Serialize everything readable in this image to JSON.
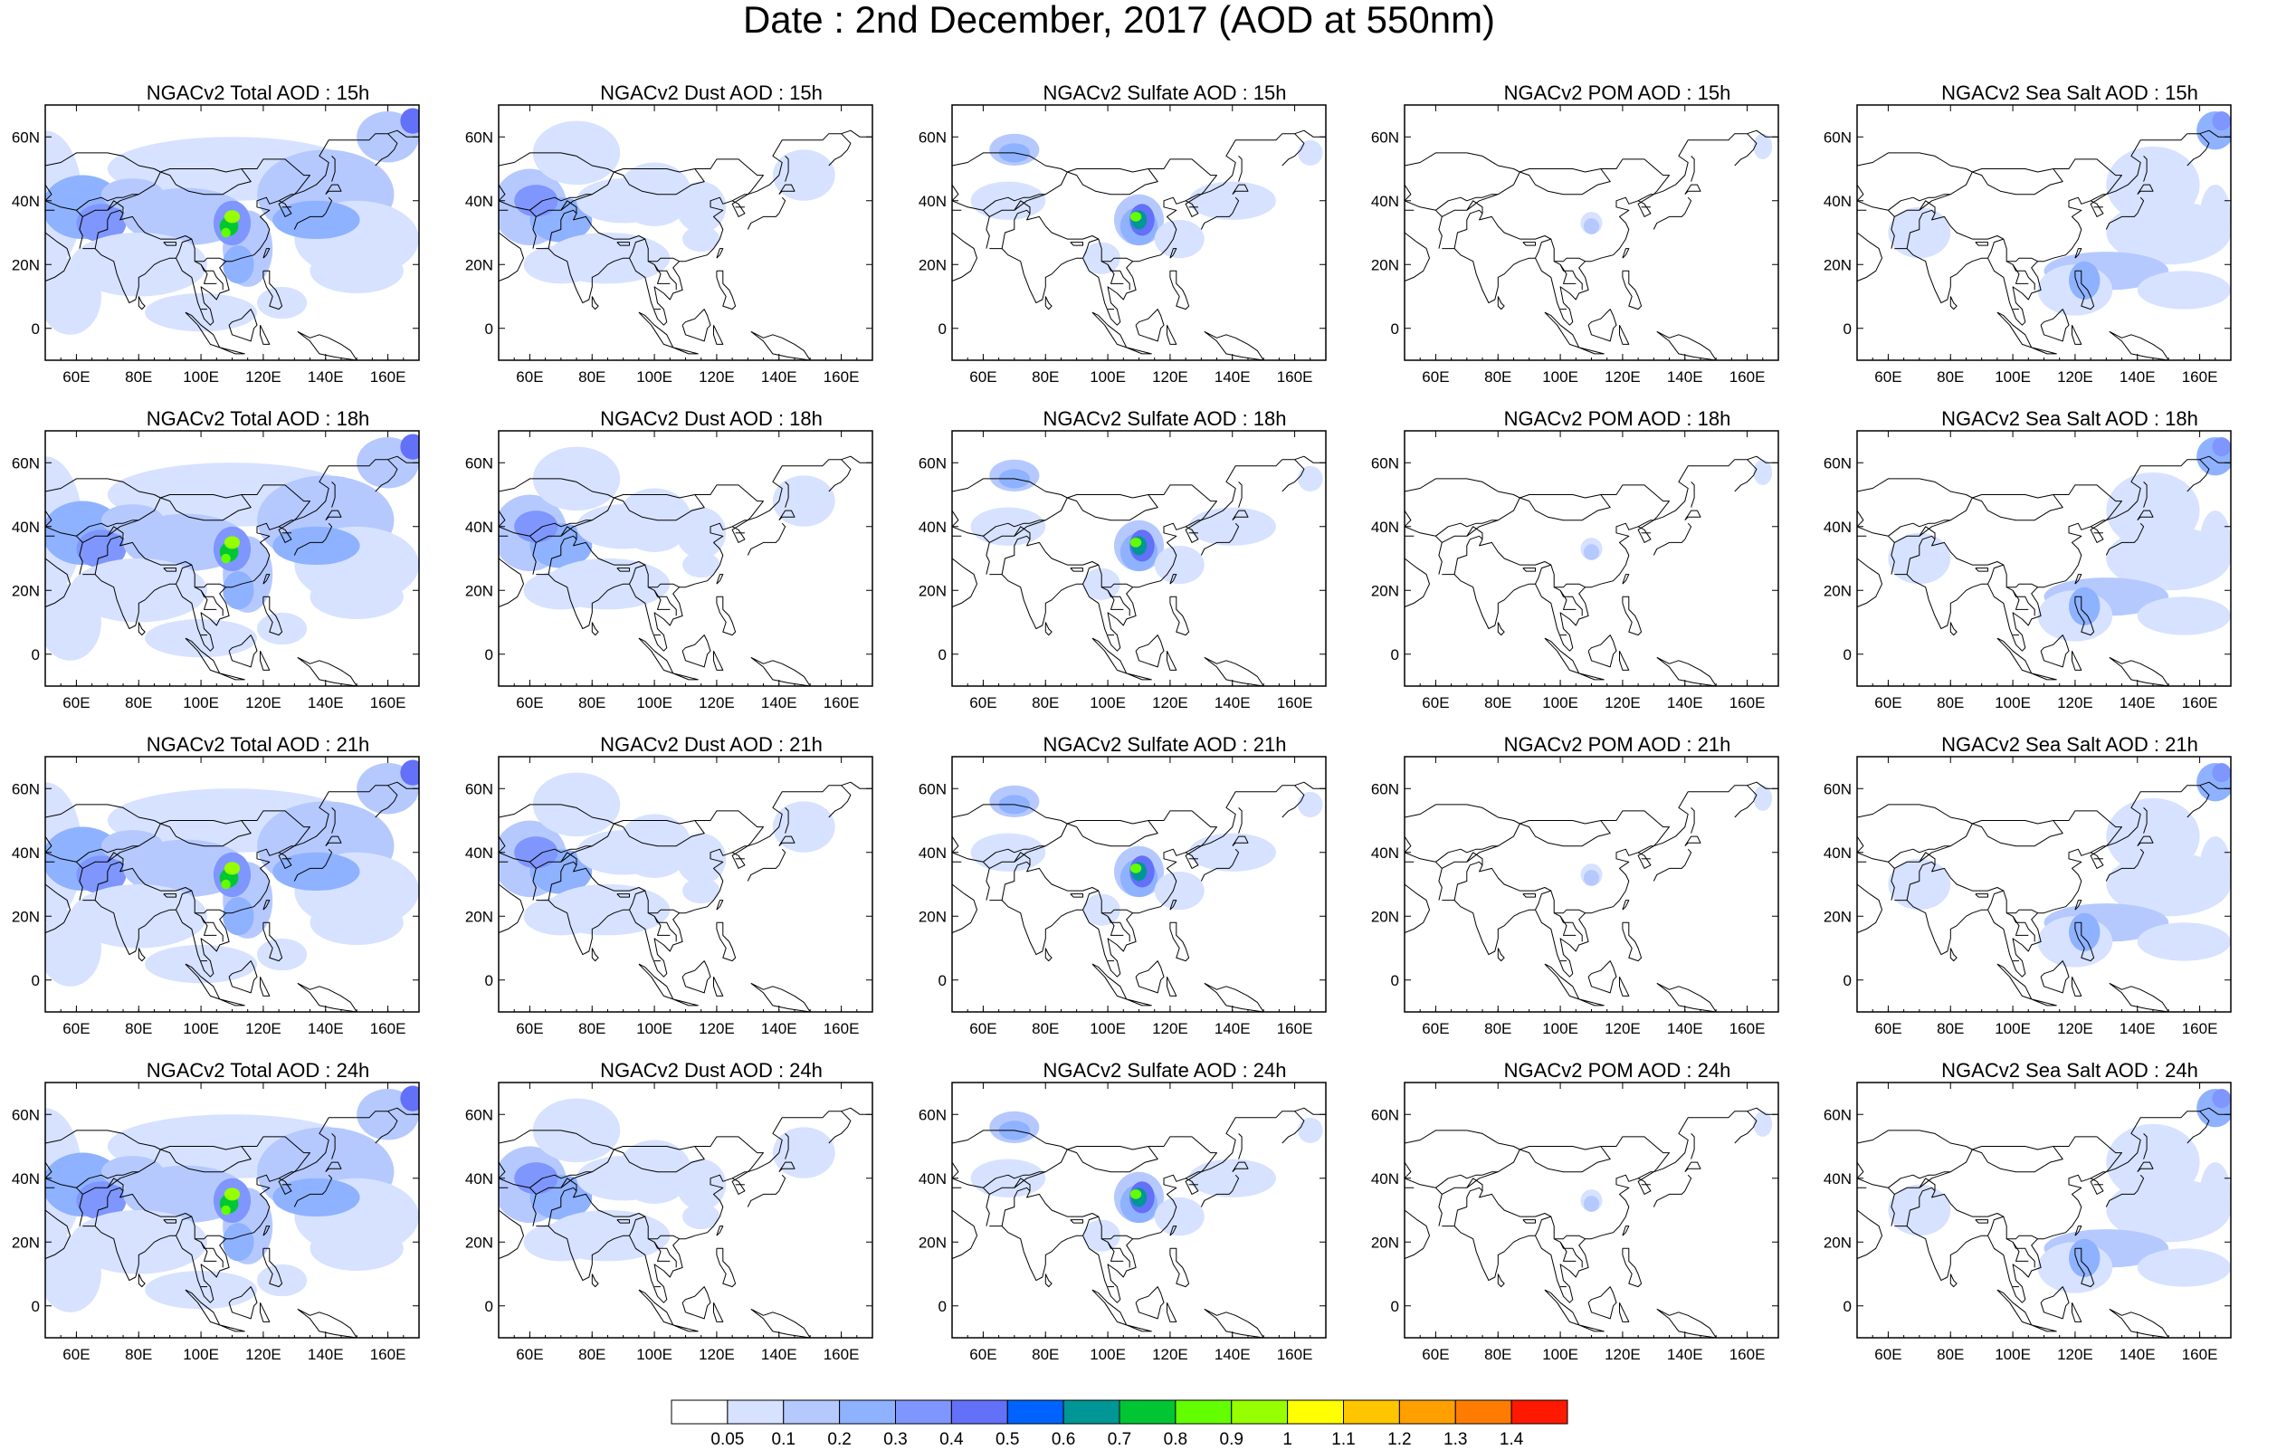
{
  "title": "Date : 2nd December, 2017 (AOD at 550nm)",
  "panels": [
    {
      "title": "NGACv2 Total AOD : 15h",
      "species": "total",
      "hour": "15h"
    },
    {
      "title": "NGACv2 Dust AOD : 15h",
      "species": "dust",
      "hour": "15h"
    },
    {
      "title": "NGACv2 Sulfate AOD : 15h",
      "species": "sulfate",
      "hour": "15h"
    },
    {
      "title": "NGACv2 POM AOD : 15h",
      "species": "pom",
      "hour": "15h"
    },
    {
      "title": "NGACv2 Sea Salt AOD : 15h",
      "species": "seasalt",
      "hour": "15h"
    },
    {
      "title": "NGACv2 Total AOD : 18h",
      "species": "total",
      "hour": "18h"
    },
    {
      "title": "NGACv2 Dust AOD : 18h",
      "species": "dust",
      "hour": "18h"
    },
    {
      "title": "NGACv2 Sulfate AOD : 18h",
      "species": "sulfate",
      "hour": "18h"
    },
    {
      "title": "NGACv2 POM AOD : 18h",
      "species": "pom",
      "hour": "18h"
    },
    {
      "title": "NGACv2 Sea Salt AOD : 18h",
      "species": "seasalt",
      "hour": "18h"
    },
    {
      "title": "NGACv2 Total AOD : 21h",
      "species": "total",
      "hour": "21h"
    },
    {
      "title": "NGACv2 Dust AOD : 21h",
      "species": "dust",
      "hour": "21h"
    },
    {
      "title": "NGACv2 Sulfate AOD : 21h",
      "species": "sulfate",
      "hour": "21h"
    },
    {
      "title": "NGACv2 POM AOD : 21h",
      "species": "pom",
      "hour": "21h"
    },
    {
      "title": "NGACv2 Sea Salt AOD : 21h",
      "species": "seasalt",
      "hour": "21h"
    },
    {
      "title": "NGACv2 Total AOD : 24h",
      "species": "total",
      "hour": "24h"
    },
    {
      "title": "NGACv2 Dust AOD : 24h",
      "species": "dust",
      "hour": "24h"
    },
    {
      "title": "NGACv2 Sulfate AOD : 24h",
      "species": "sulfate",
      "hour": "24h"
    },
    {
      "title": "NGACv2 POM AOD : 24h",
      "species": "pom",
      "hour": "24h"
    },
    {
      "title": "NGACv2 Sea Salt  AOD : 24h",
      "species": "seasalt",
      "hour": "24h"
    }
  ],
  "map_extent": {
    "lon": [
      50,
      170
    ],
    "lat": [
      -10,
      70
    ]
  },
  "lon_ticks": [
    {
      "value": 60,
      "label": "60E"
    },
    {
      "value": 80,
      "label": "80E"
    },
    {
      "value": 100,
      "label": "100E"
    },
    {
      "value": 120,
      "label": "120E"
    },
    {
      "value": 140,
      "label": "140E"
    },
    {
      "value": 160,
      "label": "160E"
    }
  ],
  "lat_ticks": [
    {
      "value": 60,
      "label": "60N"
    },
    {
      "value": 40,
      "label": "40N"
    },
    {
      "value": 20,
      "label": "20N"
    },
    {
      "value": 0,
      "label": "0"
    }
  ],
  "colorbar": {
    "levels": [
      "0.05",
      "0.1",
      "0.2",
      "0.3",
      "0.4",
      "0.5",
      "0.6",
      "0.7",
      "0.8",
      "0.9",
      "1",
      "1.1",
      "1.2",
      "1.3",
      "1.4"
    ],
    "colors": [
      "#ffffff",
      "#d6e2ff",
      "#b5c9ff",
      "#8eb2ff",
      "#7f96ff",
      "#6370f8",
      "#0063ff",
      "#009696",
      "#00c633",
      "#63ff00",
      "#96ff00",
      "#ffff00",
      "#ffc600",
      "#ffa000",
      "#ff7c00",
      "#ff1900"
    ]
  }
}
